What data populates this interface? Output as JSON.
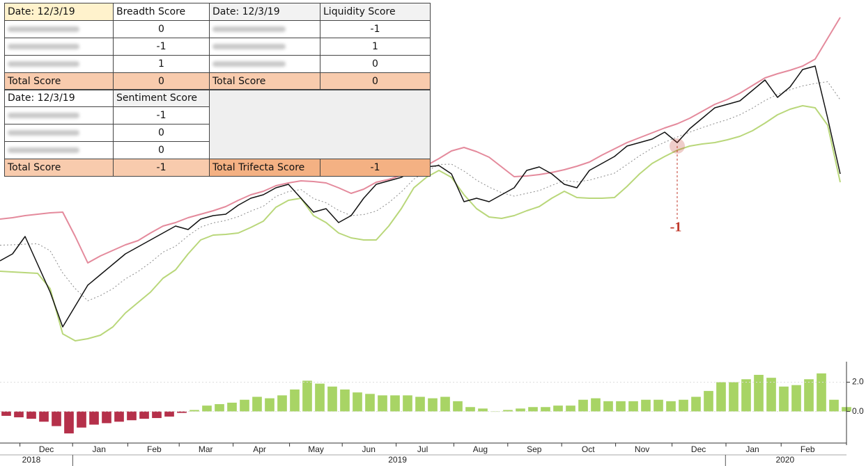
{
  "table": {
    "rows": [
      [
        "Date: 12/3/19",
        "Breadth Score",
        "Date: 12/3/19",
        "Liquidity Score"
      ],
      [
        null,
        "0",
        null,
        "-1"
      ],
      [
        null,
        "-1",
        null,
        "1"
      ],
      [
        null,
        "1",
        null,
        "0"
      ],
      [
        "Total Score",
        "0",
        "Total Score",
        "0"
      ],
      [
        "Date: 12/3/19",
        "Sentiment Score",
        null,
        null
      ],
      [
        null,
        "-1",
        null,
        null
      ],
      [
        null,
        "0",
        null,
        null
      ],
      [
        null,
        "0",
        null,
        null
      ],
      [
        "Total Score",
        "-1",
        "Total Trifecta Score",
        "-1"
      ]
    ]
  },
  "chart_data": [
    {
      "type": "line",
      "x": [
        0,
        1,
        2,
        3,
        4,
        5,
        6,
        7,
        8,
        9,
        10,
        11,
        12,
        13,
        14,
        15,
        16,
        17,
        18,
        19,
        20,
        21,
        22,
        23,
        24,
        25,
        26,
        27,
        28,
        29,
        30,
        31,
        32,
        33,
        34,
        35,
        36,
        37,
        38,
        39,
        40,
        41,
        42,
        43,
        44,
        45,
        46,
        47,
        48,
        49,
        50,
        51,
        52,
        53,
        54,
        55,
        56,
        57,
        58,
        59,
        60,
        61,
        62,
        63,
        64,
        65,
        66,
        67
      ],
      "xlim": [
        0,
        67.5
      ],
      "ylim": [
        0,
        480
      ],
      "series": [
        {
          "color": "#e48a9c",
          "width": 2,
          "values": [
            185,
            187,
            190,
            192,
            194,
            195,
            160,
            122,
            132,
            140,
            148,
            154,
            165,
            175,
            180,
            187,
            192,
            197,
            203,
            212,
            220,
            225,
            233,
            237,
            240,
            239,
            237,
            230,
            222,
            228,
            238,
            242,
            248,
            255,
            262,
            272,
            283,
            288,
            282,
            274,
            260,
            246,
            247,
            249,
            252,
            256,
            261,
            267,
            277,
            286,
            295,
            302,
            309,
            316,
            322,
            330,
            340,
            350,
            357,
            366,
            377,
            388,
            394,
            399,
            405,
            415,
            445,
            475
          ]
        },
        {
          "color": "#b9d77a",
          "width": 2,
          "values": [
            110,
            109,
            108,
            107,
            85,
            20,
            10,
            13,
            18,
            30,
            50,
            65,
            80,
            100,
            112,
            135,
            155,
            162,
            163,
            165,
            173,
            182,
            202,
            212,
            215,
            190,
            180,
            165,
            158,
            155,
            155,
            175,
            200,
            230,
            245,
            255,
            245,
            220,
            200,
            188,
            186,
            190,
            197,
            203,
            215,
            225,
            216,
            215,
            215,
            216,
            232,
            250,
            265,
            275,
            284,
            290,
            293,
            295,
            299,
            304,
            312,
            323,
            335,
            343,
            348,
            345,
            320,
            238
          ]
        },
        {
          "color": "#8a8a8a",
          "width": 1,
          "dash": true,
          "values": [
            147.5,
            148,
            149,
            149.5,
            139.5,
            107.5,
            85,
            67.5,
            75,
            85,
            99,
            109.5,
            122.5,
            137.5,
            146,
            161,
            173.5,
            179.5,
            183,
            188.5,
            196.5,
            203.5,
            217.5,
            224.5,
            227.5,
            214.5,
            208.5,
            197.5,
            190,
            191.5,
            196.5,
            208.5,
            224,
            242.5,
            253.5,
            263.5,
            264,
            254,
            241,
            231,
            223,
            218,
            222,
            226,
            233.5,
            240.5,
            238.5,
            241,
            246,
            251,
            263.5,
            276,
            287,
            295.5,
            303,
            310,
            316.5,
            322.5,
            328,
            335,
            344.5,
            355.5,
            364.5,
            371,
            376.5,
            380,
            382.5,
            356.5
          ]
        },
        {
          "color": "#111111",
          "width": 1.5,
          "values": [
            125,
            135,
            160,
            120,
            80,
            30,
            60,
            90,
            105,
            120,
            135,
            145,
            155,
            165,
            175,
            170,
            185,
            190,
            192,
            205,
            215,
            220,
            230,
            235,
            215,
            195,
            200,
            180,
            190,
            215,
            235,
            240,
            245,
            255,
            260,
            262,
            250,
            210,
            215,
            210,
            220,
            230,
            255,
            260,
            250,
            235,
            230,
            255,
            265,
            275,
            290,
            295,
            300,
            310,
            295,
            315,
            330,
            345,
            350,
            355,
            370,
            385,
            360,
            375,
            400,
            405,
            330,
            250
          ]
        }
      ],
      "annotation": {
        "text": "-1",
        "x": 54,
        "y": 290,
        "color": "#c0392b"
      }
    },
    {
      "type": "bar",
      "x": [
        0,
        1,
        2,
        3,
        4,
        5,
        6,
        7,
        8,
        9,
        10,
        11,
        12,
        13,
        14,
        15,
        16,
        17,
        18,
        19,
        20,
        21,
        22,
        23,
        24,
        25,
        26,
        27,
        28,
        29,
        30,
        31,
        32,
        33,
        34,
        35,
        36,
        37,
        38,
        39,
        40,
        41,
        42,
        43,
        44,
        45,
        46,
        47,
        48,
        49,
        50,
        51,
        52,
        53,
        54,
        55,
        56,
        57,
        58,
        59,
        60,
        61,
        62,
        63,
        64,
        65,
        66,
        67
      ],
      "xlim": [
        0,
        67.5
      ],
      "values": [
        -0.3,
        -0.4,
        -0.5,
        -0.7,
        -1.0,
        -1.5,
        -1.1,
        -0.9,
        -0.8,
        -0.7,
        -0.6,
        -0.5,
        -0.45,
        -0.35,
        -0.1,
        0.1,
        0.4,
        0.5,
        0.6,
        0.8,
        1.0,
        0.9,
        1.1,
        1.5,
        2.1,
        1.9,
        1.7,
        1.5,
        1.3,
        1.2,
        1.1,
        1.1,
        1.1,
        1.0,
        0.9,
        1.0,
        0.7,
        0.3,
        0.2,
        0.0,
        0.1,
        0.2,
        0.3,
        0.3,
        0.4,
        0.4,
        0.8,
        0.9,
        0.7,
        0.7,
        0.7,
        0.8,
        0.8,
        0.7,
        0.8,
        1.0,
        1.4,
        2.0,
        2.0,
        2.2,
        2.5,
        2.3,
        1.7,
        1.8,
        2.2,
        2.6,
        0.8,
        0.3
      ],
      "color": "#a8d465",
      "negative_color": "#b5304a",
      "ylim": [
        -2.3,
        3.4
      ],
      "yticks": [
        {
          "value": 2,
          "label": "2.0"
        },
        {
          "value": 0,
          "label": "0.0"
        }
      ],
      "xticks": [
        {
          "value": 3.7,
          "label": "Dec"
        },
        {
          "value": 7.9,
          "label": "Jan"
        },
        {
          "value": 12.3,
          "label": "Feb"
        },
        {
          "value": 16.4,
          "label": "Mar"
        },
        {
          "value": 20.7,
          "label": "Apr"
        },
        {
          "value": 25.2,
          "label": "May"
        },
        {
          "value": 29.4,
          "label": "Jun"
        },
        {
          "value": 33.7,
          "label": "Jul"
        },
        {
          "value": 38.3,
          "label": "Aug"
        },
        {
          "value": 42.6,
          "label": "Sep"
        },
        {
          "value": 46.9,
          "label": "Oct"
        },
        {
          "value": 51.2,
          "label": "Nov"
        },
        {
          "value": 55.7,
          "label": "Dec"
        },
        {
          "value": 60,
          "label": "Jan"
        },
        {
          "value": 64.4,
          "label": "Feb"
        }
      ],
      "year_labels": [
        {
          "value": 2.5,
          "label": "2018"
        },
        {
          "value": 31.7,
          "label": "2019"
        },
        {
          "value": 62.6,
          "label": "2020"
        }
      ]
    }
  ]
}
